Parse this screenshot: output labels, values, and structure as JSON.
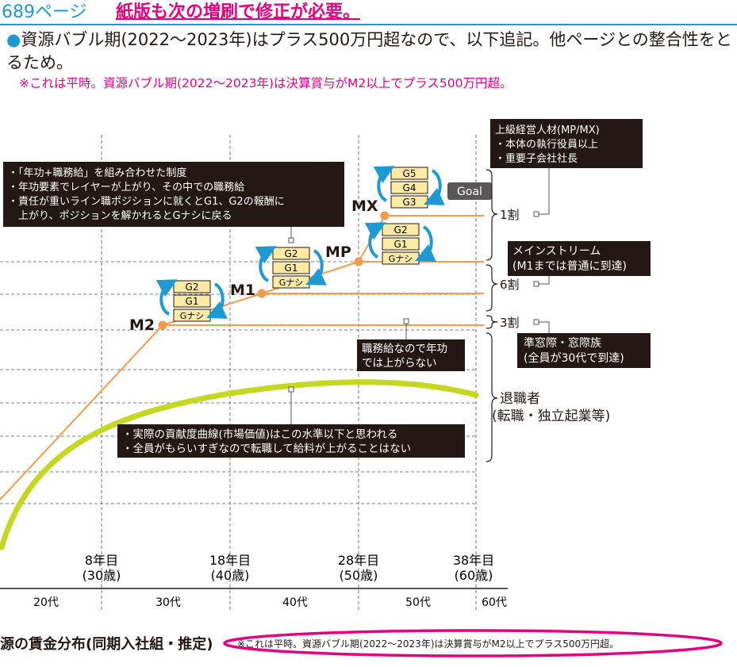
{
  "header": {
    "page_label": "689ページ",
    "correction_note": "紙版も次の増刷で修正が必要。"
  },
  "bullet": {
    "text": "資源バブル期(2022～2023年)はプラス500万円超なので、以下追記。他ページとの整合性をとるため。"
  },
  "top_note": "※これは平時。資源バブル期(2022～2023年)は決算賞与がM2以上でプラス500万円超。",
  "chart": {
    "boxes": {
      "system_desc": [
        "・「年功+職務給」を組み合わせた制度",
        "・年功要素でレイヤーが上がり、その中での職務給",
        "・責任が重いライン職ポジションに就くとG1、G2の報酬に",
        "　上がり、ポジションを解かれるとGナシに戻る"
      ],
      "exec_talent": [
        "上級経営人材(MP/MX)",
        "・本体の執行役員以上",
        "・重要子会社社長"
      ],
      "mainstream": [
        "メインストリーム",
        "(M1までは普通に到達)"
      ],
      "window_tribe": [
        "準窓際・窓際族",
        "(全員が30代で到達)"
      ],
      "job_pay": [
        "職務給なので年功",
        "では上がらない"
      ],
      "contribution": [
        "・実際の貢献度曲線(市場価値)はこの水準以下と思われる",
        "・全員がもらいすぎなので転職して給料が上がることはない"
      ]
    },
    "levels": {
      "m2": "M2",
      "m1": "M1",
      "mp": "MP",
      "mx": "MX"
    },
    "grades": {
      "g5": "G5",
      "g4": "G4",
      "g3": "G3",
      "g2": "G2",
      "g1": "G1",
      "gnashi": "Gナシ"
    },
    "goal": "Goal",
    "brackets": {
      "one_tenth": "1割",
      "six_tenths": "6割",
      "three_tenths": "3割",
      "retirees": [
        "退職者",
        "(転職・独立起業等)"
      ]
    },
    "x_milestones": [
      {
        "year": "8年目",
        "age": "(30歳)"
      },
      {
        "year": "18年目",
        "age": "(40歳)"
      },
      {
        "year": "28年目",
        "age": "(50歳)"
      },
      {
        "year": "38年目",
        "age": "(60歳)"
      }
    ],
    "decades": [
      "20代",
      "30代",
      "40代",
      "50代",
      "60代"
    ],
    "caption_title": "源の賃金分布(同期入社組・推定)",
    "caption_note": "※これは平時。資源バブル期(2022～2023年)は決算賞与がM2以上でプラス500万円超。"
  },
  "colors": {
    "accent_blue": "#1e9ad2",
    "magenta": "#e4007f",
    "orange_line": "#f39a4c",
    "lime_curve": "#c5d821",
    "grade_box": "#fdeaa4",
    "dark_box": "#231815"
  }
}
